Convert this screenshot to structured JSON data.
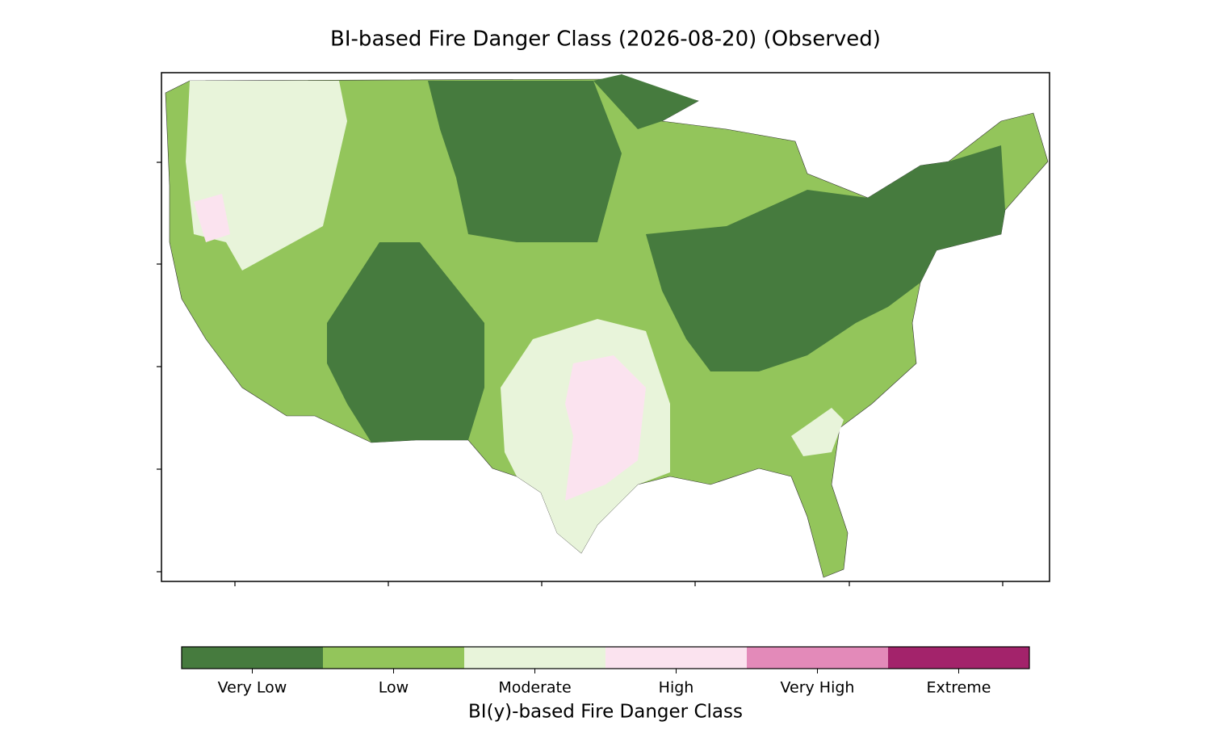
{
  "title": "BI-based Fire Danger Class (2026-08-20) (Observed)",
  "colorbar": {
    "label": "BI(y)-based Fire Danger Class",
    "classes": [
      {
        "name": "Very Low",
        "color": "#467b3e"
      },
      {
        "name": "Low",
        "color": "#93c55b"
      },
      {
        "name": "Moderate",
        "color": "#e8f4da"
      },
      {
        "name": "High",
        "color": "#fbe3ef"
      },
      {
        "name": "Very High",
        "color": "#e38ab9"
      },
      {
        "name": "Extreme",
        "color": "#a3236b"
      }
    ]
  }
}
